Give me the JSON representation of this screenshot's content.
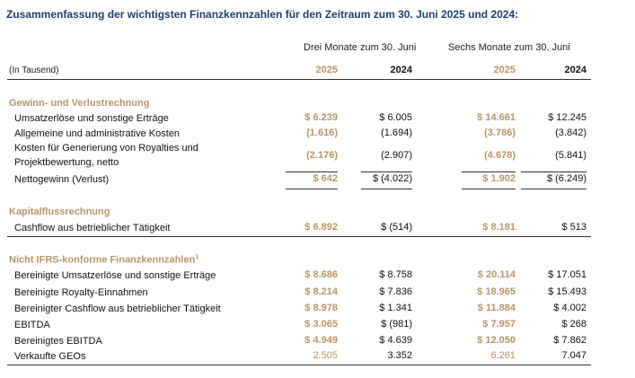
{
  "title": "Zusammenfassung der wichtigsten Finanzkennzahlen für den Zeitraum zum 30. Juni 2025 und 2024:",
  "header": {
    "unit": "(In Tausend)",
    "group_three_months": "Drei Monate zum 30. Juni",
    "group_six_months": "Sechs Monate zum 30. Juni",
    "years": [
      "2025",
      "2024",
      "2025",
      "2024"
    ]
  },
  "sections": {
    "income": {
      "title": "Gewinn- und Verlustrechnung",
      "rows": [
        {
          "label": "Umsatzerlöse und sonstige Erträge",
          "values": [
            "$ 6.239",
            "$ 6.005",
            "$ 14.661",
            "$ 12.245"
          ]
        },
        {
          "label": "Allgemeine und administrative Kosten",
          "values": [
            "(1.616)",
            "(1.694)",
            "(3.786)",
            "(3.842)"
          ]
        },
        {
          "label_line1": "Kosten für Generierung von Royalties und",
          "label_line2": "Projektbewertung, netto",
          "values": [
            "(2.176)",
            "(2.907)",
            "(4.678)",
            "(5.841)"
          ]
        },
        {
          "label": "Nettogewinn (Verlust)",
          "values": [
            "$ 642",
            "$ (4.022)",
            "$ 1.902",
            "$ (6.249)"
          ]
        }
      ]
    },
    "cashflow": {
      "title": "Kapitalflussrechnung",
      "rows": [
        {
          "label": "Cashflow aus betrieblicher Tätigkeit",
          "values": [
            "$ 6.892",
            "$ (514)",
            "$ 8.181",
            "$ 513"
          ]
        }
      ]
    },
    "non_ifrs": {
      "title": "Nicht IFRS-konforme Finanzkennzahlen",
      "footnote": "1",
      "rows": [
        {
          "label": "Bereinigte Umsatzerlöse und sonstige Erträge",
          "values": [
            "$ 8.686",
            "$ 8.758",
            "$ 20.114",
            "$ 17.051"
          ]
        },
        {
          "label": "Bereinigte Royalty-Einnahmen",
          "values": [
            "$ 8.214",
            "$ 7.836",
            "$ 18.965",
            "$ 15.493"
          ]
        },
        {
          "label": "Bereinigter Cashflow aus betrieblicher Tätigkeit",
          "values": [
            "$ 8.978",
            "$ 1.341",
            "$ 11.884",
            "$ 4.002"
          ]
        },
        {
          "label": "EBITDA",
          "values": [
            "$ 3.065",
            "$ (981)",
            "$ 7.957",
            "$ 268"
          ]
        },
        {
          "label": "Bereinigtes EBITDA",
          "values": [
            "$ 4.949",
            "$ 4.639",
            "$ 12.050",
            "$ 7.862"
          ]
        },
        {
          "label": "Verkaufte GEOs",
          "values": [
            "2.505",
            "3.352",
            "6.261",
            "7.047"
          ]
        }
      ]
    }
  },
  "colors": {
    "title": "#1f3f6e",
    "accent_gold": "#b8956a"
  }
}
